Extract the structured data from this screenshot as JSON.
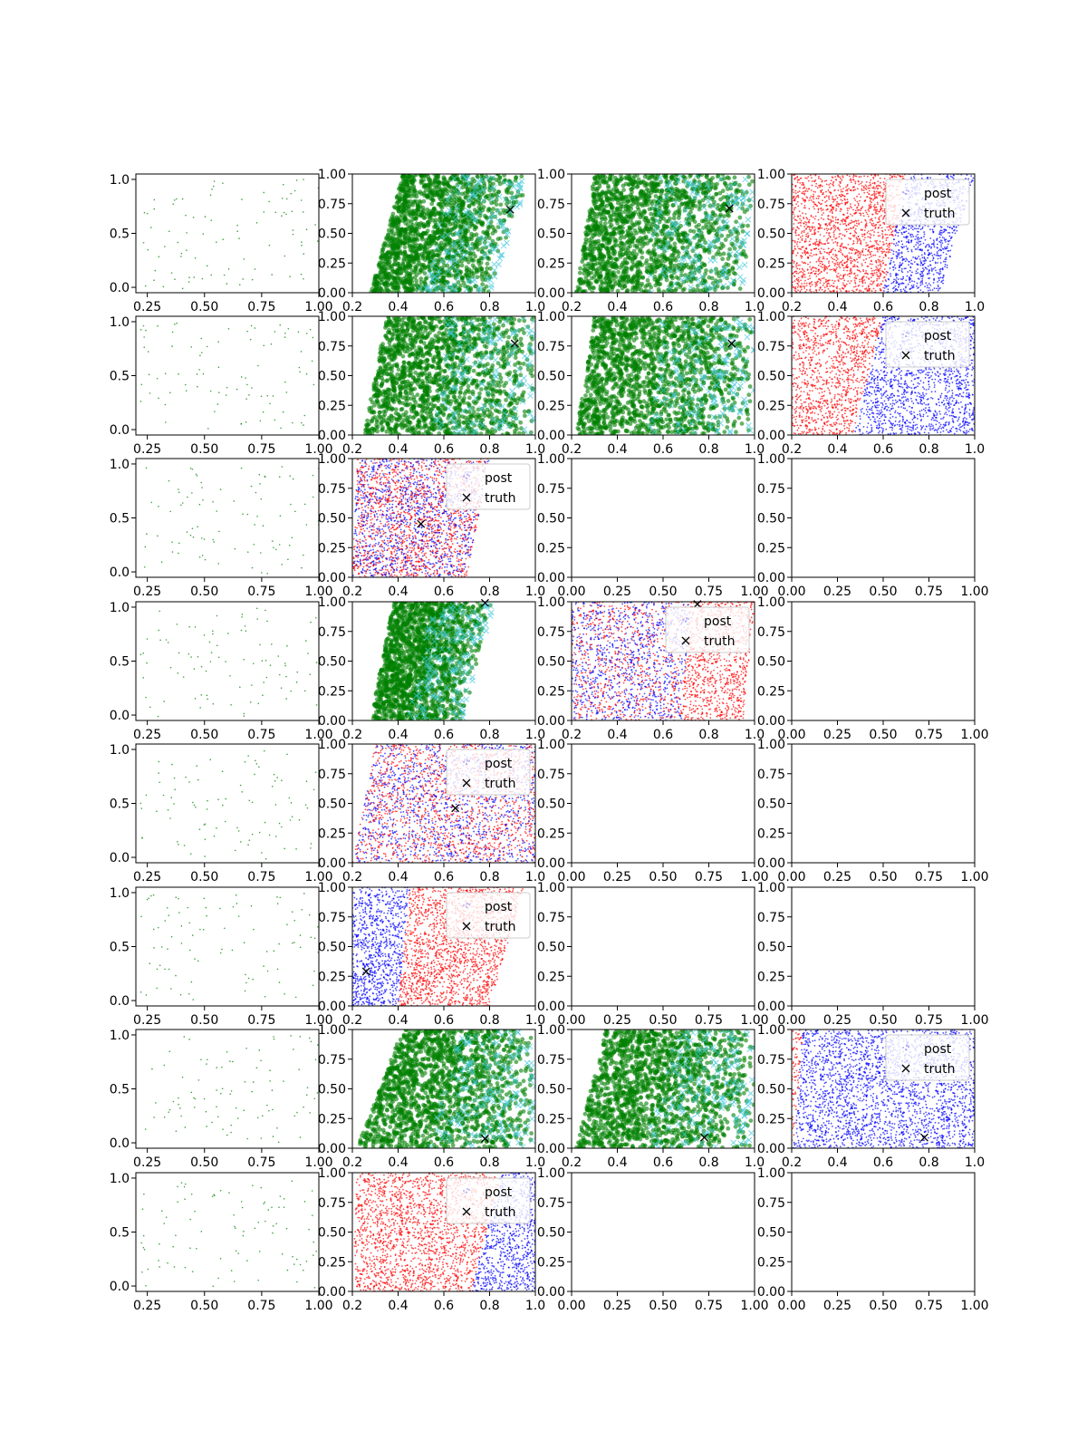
{
  "colors": {
    "green": "#008000",
    "cyan": "#40c8d8",
    "red": "#ff0000",
    "blue": "#0000ff",
    "black": "#000000"
  },
  "chart_data": [
    {
      "row": 1,
      "col": 1,
      "type": "scatter",
      "xlim": [
        0.2,
        1.0
      ],
      "ylim": [
        -0.05,
        1.05
      ],
      "xticks": [
        "0.25",
        "0.50",
        "0.75",
        "1.00"
      ],
      "yticks": [
        "0.0",
        "0.5",
        "1.0"
      ],
      "style": "sparse"
    },
    {
      "row": 1,
      "col": 2,
      "type": "scatter",
      "xlim": [
        0.2,
        1.0
      ],
      "ylim": [
        0,
        1
      ],
      "xticks": [
        "0.2",
        "0.4",
        "0.6",
        "0.8",
        "1.0"
      ],
      "yticks": [
        "0.00",
        "0.25",
        "0.50",
        "0.75",
        "1.00"
      ],
      "style": "green",
      "band": {
        "x_lo_bottom": 0.28,
        "x_lo_top": 0.42,
        "x_hi_bottom": 0.8,
        "x_hi_top": 0.98
      },
      "truth": [
        0.89,
        0.7
      ]
    },
    {
      "row": 1,
      "col": 3,
      "type": "scatter",
      "xlim": [
        0.2,
        1.0
      ],
      "ylim": [
        0,
        1
      ],
      "xticks": [
        "0.2",
        "0.4",
        "0.6",
        "0.8",
        "1.0"
      ],
      "yticks": [
        "0.00",
        "0.25",
        "0.50",
        "0.75",
        "1.00"
      ],
      "style": "green",
      "band": {
        "x_lo_bottom": 0.22,
        "x_lo_top": 0.3,
        "x_hi_bottom": 0.95,
        "x_hi_top": 1.0
      },
      "truth": [
        0.89,
        0.71
      ]
    },
    {
      "row": 1,
      "col": 4,
      "type": "scatter",
      "xlim": [
        0.2,
        1.0
      ],
      "ylim": [
        0,
        1
      ],
      "xticks": [
        "0.2",
        "0.4",
        "0.6",
        "0.8",
        "1.0"
      ],
      "yticks": [
        "0.00",
        "0.25",
        "0.50",
        "0.75",
        "1.00"
      ],
      "style": "redblue",
      "band": {
        "x_lo_bottom": 0.2,
        "x_lo_top": 0.2,
        "x_hi_bottom": 0.85,
        "x_hi_top": 1.0
      },
      "split": {
        "bottom": 0.6,
        "top": 0.7
      },
      "left_color": "red",
      "right_color": "blue",
      "legend": [
        "post",
        "truth"
      ]
    },
    {
      "row": 2,
      "col": 1,
      "type": "scatter",
      "xlim": [
        0.2,
        1.0
      ],
      "ylim": [
        -0.05,
        1.05
      ],
      "xticks": [
        "0.25",
        "0.50",
        "0.75",
        "1.00"
      ],
      "yticks": [
        "0.0",
        "0.5",
        "1.0"
      ],
      "style": "sparse"
    },
    {
      "row": 2,
      "col": 2,
      "type": "scatter",
      "xlim": [
        0.2,
        1.0
      ],
      "ylim": [
        0,
        1
      ],
      "xticks": [
        "0.2",
        "0.4",
        "0.6",
        "0.8",
        "1.0"
      ],
      "yticks": [
        "0.00",
        "0.25",
        "0.50",
        "0.75",
        "1.00"
      ],
      "style": "green",
      "band": {
        "x_lo_bottom": 0.25,
        "x_lo_top": 0.35,
        "x_hi_bottom": 1.0,
        "x_hi_top": 1.0
      },
      "truth": [
        0.91,
        0.77
      ]
    },
    {
      "row": 2,
      "col": 3,
      "type": "scatter",
      "xlim": [
        0.2,
        1.0
      ],
      "ylim": [
        0,
        1
      ],
      "xticks": [
        "0.2",
        "0.4",
        "0.6",
        "0.8",
        "1.0"
      ],
      "yticks": [
        "0.00",
        "0.25",
        "0.50",
        "0.75",
        "1.00"
      ],
      "style": "green",
      "band": {
        "x_lo_bottom": 0.22,
        "x_lo_top": 0.3,
        "x_hi_bottom": 1.0,
        "x_hi_top": 1.0
      },
      "truth": [
        0.9,
        0.77
      ]
    },
    {
      "row": 2,
      "col": 4,
      "type": "scatter",
      "xlim": [
        0.2,
        1.0
      ],
      "ylim": [
        0,
        1
      ],
      "xticks": [
        "0.2",
        "0.4",
        "0.6",
        "0.8",
        "1.0"
      ],
      "yticks": [
        "0.00",
        "0.25",
        "0.50",
        "0.75",
        "1.00"
      ],
      "style": "redblue",
      "band": {
        "x_lo_bottom": 0.2,
        "x_lo_top": 0.2,
        "x_hi_bottom": 1.0,
        "x_hi_top": 1.0
      },
      "split": {
        "bottom": 0.47,
        "top": 0.6
      },
      "left_color": "red",
      "right_color": "blue",
      "legend": [
        "post",
        "truth"
      ]
    },
    {
      "row": 3,
      "col": 1,
      "type": "scatter",
      "xlim": [
        0.2,
        1.0
      ],
      "ylim": [
        -0.05,
        1.05
      ],
      "xticks": [
        "0.25",
        "0.50",
        "0.75",
        "1.00"
      ],
      "yticks": [
        "0.0",
        "0.5",
        "1.0"
      ],
      "style": "sparse"
    },
    {
      "row": 3,
      "col": 2,
      "type": "scatter",
      "xlim": [
        0.2,
        1.0
      ],
      "ylim": [
        0,
        1
      ],
      "xticks": [
        "0.2",
        "0.4",
        "0.6",
        "0.8",
        "1.0"
      ],
      "yticks": [
        "0.00",
        "0.25",
        "0.50",
        "0.75",
        "1.00"
      ],
      "style": "redblue",
      "band": {
        "x_lo_bottom": 0.2,
        "x_lo_top": 0.22,
        "x_hi_bottom": 0.7,
        "x_hi_top": 0.8
      },
      "mixed": true,
      "truth": [
        0.5,
        0.45
      ],
      "legend": [
        "post",
        "truth"
      ]
    },
    {
      "row": 3,
      "col": 3,
      "type": "empty",
      "xlim": [
        0,
        1
      ],
      "ylim": [
        0,
        1
      ],
      "xticks": [
        "0.00",
        "0.25",
        "0.50",
        "0.75",
        "1.00"
      ],
      "yticks": [
        "0.00",
        "0.25",
        "0.50",
        "0.75",
        "1.00"
      ]
    },
    {
      "row": 3,
      "col": 4,
      "type": "empty",
      "xlim": [
        0,
        1
      ],
      "ylim": [
        0,
        1
      ],
      "xticks": [
        "0.00",
        "0.25",
        "0.50",
        "0.75",
        "1.00"
      ],
      "yticks": [
        "0.00",
        "0.25",
        "0.50",
        "0.75",
        "1.00"
      ]
    },
    {
      "row": 4,
      "col": 1,
      "type": "scatter",
      "xlim": [
        0.2,
        1.0
      ],
      "ylim": [
        -0.05,
        1.05
      ],
      "xticks": [
        "0.25",
        "0.50",
        "0.75",
        "1.00"
      ],
      "yticks": [
        "0.0",
        "0.5",
        "1.0"
      ],
      "style": "sparse"
    },
    {
      "row": 4,
      "col": 2,
      "type": "scatter",
      "xlim": [
        0.2,
        1.0
      ],
      "ylim": [
        0,
        1
      ],
      "xticks": [
        "0.2",
        "0.4",
        "0.6",
        "0.8",
        "1.0"
      ],
      "yticks": [
        "0.00",
        "0.25",
        "0.50",
        "0.75",
        "1.00"
      ],
      "style": "green",
      "band": {
        "x_lo_bottom": 0.28,
        "x_lo_top": 0.38,
        "x_hi_bottom": 0.68,
        "x_hi_top": 0.82
      },
      "truth": [
        0.78,
        0.99
      ]
    },
    {
      "row": 4,
      "col": 3,
      "type": "scatter",
      "xlim": [
        0.2,
        1.0
      ],
      "ylim": [
        0,
        1
      ],
      "xticks": [
        "0.2",
        "0.4",
        "0.6",
        "0.8",
        "1.0"
      ],
      "yticks": [
        "0.00",
        "0.25",
        "0.50",
        "0.75",
        "1.00"
      ],
      "style": "redblue",
      "band": {
        "x_lo_bottom": 0.2,
        "x_lo_top": 0.2,
        "x_hi_bottom": 0.95,
        "x_hi_top": 1.0
      },
      "split": {
        "bottom": 0.68,
        "top": 0.72
      },
      "left_color": "blue",
      "right_color": "red",
      "mixed_left": true,
      "truth": [
        0.75,
        0.98
      ],
      "legend": [
        "post",
        "truth"
      ]
    },
    {
      "row": 4,
      "col": 4,
      "type": "empty",
      "xlim": [
        0,
        1
      ],
      "ylim": [
        0,
        1
      ],
      "xticks": [
        "0.00",
        "0.25",
        "0.50",
        "0.75",
        "1.00"
      ],
      "yticks": [
        "0.00",
        "0.25",
        "0.50",
        "0.75",
        "1.00"
      ]
    },
    {
      "row": 5,
      "col": 1,
      "type": "scatter",
      "xlim": [
        0.2,
        1.0
      ],
      "ylim": [
        -0.05,
        1.05
      ],
      "xticks": [
        "0.25",
        "0.50",
        "0.75",
        "1.00"
      ],
      "yticks": [
        "0.0",
        "0.5",
        "1.0"
      ],
      "style": "sparse"
    },
    {
      "row": 5,
      "col": 2,
      "type": "scatter",
      "xlim": [
        0.2,
        1.0
      ],
      "ylim": [
        0,
        1
      ],
      "xticks": [
        "0.2",
        "0.4",
        "0.6",
        "0.8",
        "1.0"
      ],
      "yticks": [
        "0.00",
        "0.25",
        "0.50",
        "0.75",
        "1.00"
      ],
      "style": "redblue",
      "band": {
        "x_lo_bottom": 0.2,
        "x_lo_top": 0.3,
        "x_hi_bottom": 1.0,
        "x_hi_top": 1.0
      },
      "mixed": true,
      "truth": [
        0.65,
        0.46
      ],
      "legend": [
        "post",
        "truth"
      ]
    },
    {
      "row": 5,
      "col": 3,
      "type": "empty",
      "xlim": [
        0,
        1
      ],
      "ylim": [
        0,
        1
      ],
      "xticks": [
        "0.00",
        "0.25",
        "0.50",
        "0.75",
        "1.00"
      ],
      "yticks": [
        "0.00",
        "0.25",
        "0.50",
        "0.75",
        "1.00"
      ]
    },
    {
      "row": 5,
      "col": 4,
      "type": "empty",
      "xlim": [
        0,
        1
      ],
      "ylim": [
        0,
        1
      ],
      "xticks": [
        "0.00",
        "0.25",
        "0.50",
        "0.75",
        "1.00"
      ],
      "yticks": [
        "0.00",
        "0.25",
        "0.50",
        "0.75",
        "1.00"
      ]
    },
    {
      "row": 6,
      "col": 1,
      "type": "scatter",
      "xlim": [
        0.2,
        1.0
      ],
      "ylim": [
        -0.05,
        1.05
      ],
      "xticks": [
        "0.25",
        "0.50",
        "0.75",
        "1.00"
      ],
      "yticks": [
        "0.0",
        "0.5",
        "1.0"
      ],
      "style": "sparse"
    },
    {
      "row": 6,
      "col": 2,
      "type": "scatter",
      "xlim": [
        0.2,
        1.0
      ],
      "ylim": [
        0,
        1
      ],
      "xticks": [
        "0.2",
        "0.4",
        "0.6",
        "0.8",
        "1.0"
      ],
      "yticks": [
        "0.00",
        "0.25",
        "0.50",
        "0.75",
        "1.00"
      ],
      "style": "redblue",
      "band": {
        "x_lo_bottom": 0.2,
        "x_lo_top": 0.2,
        "x_hi_bottom": 0.8,
        "x_hi_top": 0.95
      },
      "split": {
        "bottom": 0.4,
        "top": 0.45
      },
      "left_color": "blue",
      "right_color": "red",
      "truth": [
        0.26,
        0.29
      ],
      "legend": [
        "post",
        "truth"
      ]
    },
    {
      "row": 6,
      "col": 3,
      "type": "empty",
      "xlim": [
        0,
        1
      ],
      "ylim": [
        0,
        1
      ],
      "xticks": [
        "0.00",
        "0.25",
        "0.50",
        "0.75",
        "1.00"
      ],
      "yticks": [
        "0.00",
        "0.25",
        "0.50",
        "0.75",
        "1.00"
      ]
    },
    {
      "row": 6,
      "col": 4,
      "type": "empty",
      "xlim": [
        0,
        1
      ],
      "ylim": [
        0,
        1
      ],
      "xticks": [
        "0.00",
        "0.25",
        "0.50",
        "0.75",
        "1.00"
      ],
      "yticks": [
        "0.00",
        "0.25",
        "0.50",
        "0.75",
        "1.00"
      ]
    },
    {
      "row": 7,
      "col": 1,
      "type": "scatter",
      "xlim": [
        0.2,
        1.0
      ],
      "ylim": [
        -0.05,
        1.05
      ],
      "xticks": [
        "0.25",
        "0.50",
        "0.75",
        "1.00"
      ],
      "yticks": [
        "0.0",
        "0.5",
        "1.0"
      ],
      "style": "sparse"
    },
    {
      "row": 7,
      "col": 2,
      "type": "scatter",
      "xlim": [
        0.2,
        1.0
      ],
      "ylim": [
        0,
        1
      ],
      "xticks": [
        "0.2",
        "0.4",
        "0.6",
        "0.8",
        "1.0"
      ],
      "yticks": [
        "0.00",
        "0.25",
        "0.50",
        "0.75",
        "1.00"
      ],
      "style": "green",
      "band": {
        "x_lo_bottom": 0.22,
        "x_lo_top": 0.42,
        "x_hi_bottom": 1.0,
        "x_hi_top": 1.0
      },
      "truth": [
        0.78,
        0.08
      ]
    },
    {
      "row": 7,
      "col": 3,
      "type": "scatter",
      "xlim": [
        0.2,
        1.0
      ],
      "ylim": [
        0,
        1
      ],
      "xticks": [
        "0.2",
        "0.4",
        "0.6",
        "0.8",
        "1.0"
      ],
      "yticks": [
        "0.00",
        "0.25",
        "0.50",
        "0.75",
        "1.00"
      ],
      "style": "green",
      "band": {
        "x_lo_bottom": 0.22,
        "x_lo_top": 0.35,
        "x_hi_bottom": 1.0,
        "x_hi_top": 1.0
      },
      "truth": [
        0.78,
        0.09
      ]
    },
    {
      "row": 7,
      "col": 4,
      "type": "scatter",
      "xlim": [
        0.2,
        1.0
      ],
      "ylim": [
        0,
        1
      ],
      "xticks": [
        "0.2",
        "0.4",
        "0.6",
        "0.8",
        "1.0"
      ],
      "yticks": [
        "0.00",
        "0.25",
        "0.50",
        "0.75",
        "1.00"
      ],
      "style": "redblue",
      "band": {
        "x_lo_bottom": 0.2,
        "x_lo_top": 0.2,
        "x_hi_bottom": 1.0,
        "x_hi_top": 1.0
      },
      "split": {
        "bottom": 0.205,
        "top": 0.25
      },
      "left_color": "red",
      "right_color": "blue",
      "truth": [
        0.78,
        0.09
      ],
      "legend": [
        "post",
        "truth"
      ]
    },
    {
      "row": 8,
      "col": 1,
      "type": "scatter",
      "xlim": [
        0.2,
        1.0
      ],
      "ylim": [
        -0.05,
        1.05
      ],
      "xticks": [
        "0.25",
        "0.50",
        "0.75",
        "1.00"
      ],
      "yticks": [
        "0.0",
        "0.5",
        "1.0"
      ],
      "style": "sparse"
    },
    {
      "row": 8,
      "col": 2,
      "type": "scatter",
      "xlim": [
        0.2,
        1.0
      ],
      "ylim": [
        0,
        1
      ],
      "xticks": [
        "0.2",
        "0.4",
        "0.6",
        "0.8",
        "1.0"
      ],
      "yticks": [
        "0.00",
        "0.25",
        "0.50",
        "0.75",
        "1.00"
      ],
      "style": "redblue",
      "band": {
        "x_lo_bottom": 0.2,
        "x_lo_top": 0.22,
        "x_hi_bottom": 1.0,
        "x_hi_top": 1.0
      },
      "split": {
        "bottom": 0.72,
        "top": 0.85
      },
      "left_color": "red",
      "right_color": "blue",
      "legend": [
        "post",
        "truth"
      ]
    },
    {
      "row": 8,
      "col": 3,
      "type": "empty",
      "xlim": [
        0,
        1
      ],
      "ylim": [
        0,
        1
      ],
      "xticks": [
        "0.00",
        "0.25",
        "0.50",
        "0.75",
        "1.00"
      ],
      "yticks": [
        "0.00",
        "0.25",
        "0.50",
        "0.75",
        "1.00"
      ]
    },
    {
      "row": 8,
      "col": 4,
      "type": "empty",
      "xlim": [
        0,
        1
      ],
      "ylim": [
        0,
        1
      ],
      "xticks": [
        "0.00",
        "0.25",
        "0.50",
        "0.75",
        "1.00"
      ],
      "yticks": [
        "0.00",
        "0.25",
        "0.50",
        "0.75",
        "1.00"
      ]
    }
  ]
}
